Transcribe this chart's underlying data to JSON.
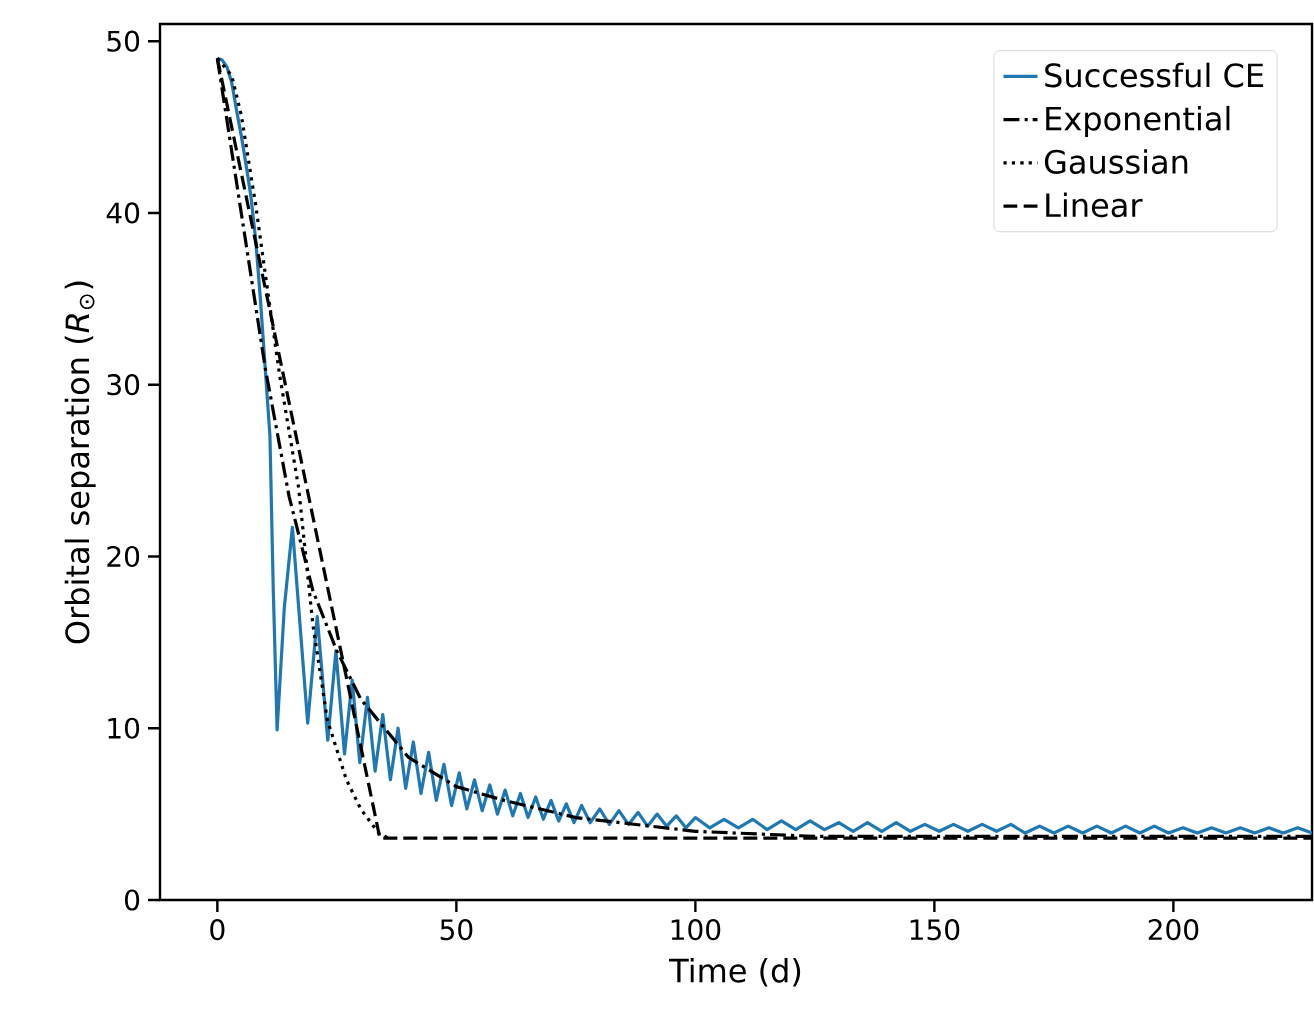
{
  "chart_data": {
    "type": "line",
    "xlabel": "Time (d)",
    "ylabel": "Orbital separation (*R*$_{⊙}$)",
    "xlim": [
      -12,
      229
    ],
    "ylim": [
      0,
      51
    ],
    "xticks": [
      0,
      50,
      100,
      150,
      200
    ],
    "yticks": [
      0,
      10,
      20,
      30,
      40,
      50
    ],
    "grid": false,
    "legend": "top right",
    "marker": "none",
    "series": [
      {
        "name": "Successful CE",
        "color": "#1f77b4",
        "line_style": "solid",
        "x": [
          0,
          1,
          2,
          3,
          4,
          5,
          6,
          7,
          8,
          9,
          10,
          11,
          11.7,
          12.5,
          14,
          15.7,
          17.3,
          18.9,
          20.9,
          23.1,
          24.8,
          26.6,
          28.2,
          29.8,
          31.4,
          33,
          34.6,
          36.2,
          37.8,
          39.4,
          41,
          42.6,
          44.2,
          45.8,
          47.4,
          49,
          50.6,
          52.2,
          53.8,
          55.4,
          57,
          58.6,
          60.2,
          61.8,
          63.4,
          65,
          66.6,
          68.2,
          69.8,
          71.4,
          73,
          74.6,
          76.2,
          78,
          80,
          82,
          84,
          86,
          88,
          90,
          92,
          94,
          96,
          98,
          100,
          103,
          106,
          109,
          112,
          115,
          118,
          121,
          124,
          127,
          130,
          133,
          136,
          139,
          142,
          145,
          148,
          151,
          154,
          157,
          160,
          163,
          166,
          169,
          172,
          175,
          178,
          181,
          184,
          187,
          190,
          193,
          196,
          199,
          202,
          205,
          208,
          211,
          214,
          217,
          220,
          223,
          226,
          229
        ],
        "values": [
          49,
          48.9,
          48.5,
          47.6,
          46,
          44.5,
          42.8,
          41,
          38.5,
          35,
          31,
          27,
          18,
          9.9,
          17,
          21.7,
          16,
          10.3,
          16.5,
          9.3,
          14.5,
          8.5,
          12.8,
          8.0,
          11.8,
          7.5,
          10.8,
          7.0,
          10.0,
          6.5,
          9.2,
          6.2,
          8.6,
          5.8,
          7.9,
          5.5,
          7.4,
          5.3,
          7.0,
          5.2,
          6.7,
          5.0,
          6.4,
          4.9,
          6.2,
          4.8,
          6.0,
          4.7,
          5.8,
          4.6,
          5.6,
          4.5,
          5.5,
          4.5,
          5.3,
          4.4,
          5.2,
          4.4,
          5.1,
          4.3,
          5.0,
          4.3,
          4.9,
          4.2,
          4.8,
          4.2,
          4.7,
          4.2,
          4.7,
          4.1,
          4.6,
          4.1,
          4.6,
          4.1,
          4.5,
          4.0,
          4.5,
          4.0,
          4.5,
          4.0,
          4.4,
          4.0,
          4.4,
          4.0,
          4.4,
          4.0,
          4.4,
          3.9,
          4.3,
          3.9,
          4.3,
          3.9,
          4.3,
          3.9,
          4.3,
          3.9,
          4.3,
          3.9,
          4.2,
          3.9,
          4.2,
          3.9,
          4.2,
          3.9,
          4.2,
          3.9,
          4.2,
          3.9
        ]
      },
      {
        "name": "Exponential",
        "color": "#000000",
        "line_style": "dashdot",
        "x": [
          0,
          5,
          10,
          15,
          20,
          25,
          30,
          40,
          50,
          60,
          75,
          100,
          125,
          150,
          229
        ],
        "values": [
          49,
          40,
          31,
          23.5,
          18,
          14.5,
          11.7,
          8.3,
          6.6,
          5.8,
          4.8,
          4.0,
          3.7,
          3.7,
          3.7
        ]
      },
      {
        "name": "Gaussian",
        "color": "#000000",
        "line_style": "dotted",
        "x": [
          0,
          3,
          5,
          8,
          10,
          13,
          17,
          20,
          23,
          27,
          30,
          34,
          36
        ],
        "values": [
          49,
          48,
          45.7,
          40.5,
          36.5,
          30.6,
          24,
          16,
          10.5,
          7,
          5.3,
          3.8,
          3.6
        ]
      },
      {
        "name": "Linear",
        "color": "#000000",
        "line_style": "dashed",
        "x": [
          0,
          34,
          229
        ],
        "values": [
          49,
          3.6,
          3.6
        ]
      }
    ]
  }
}
